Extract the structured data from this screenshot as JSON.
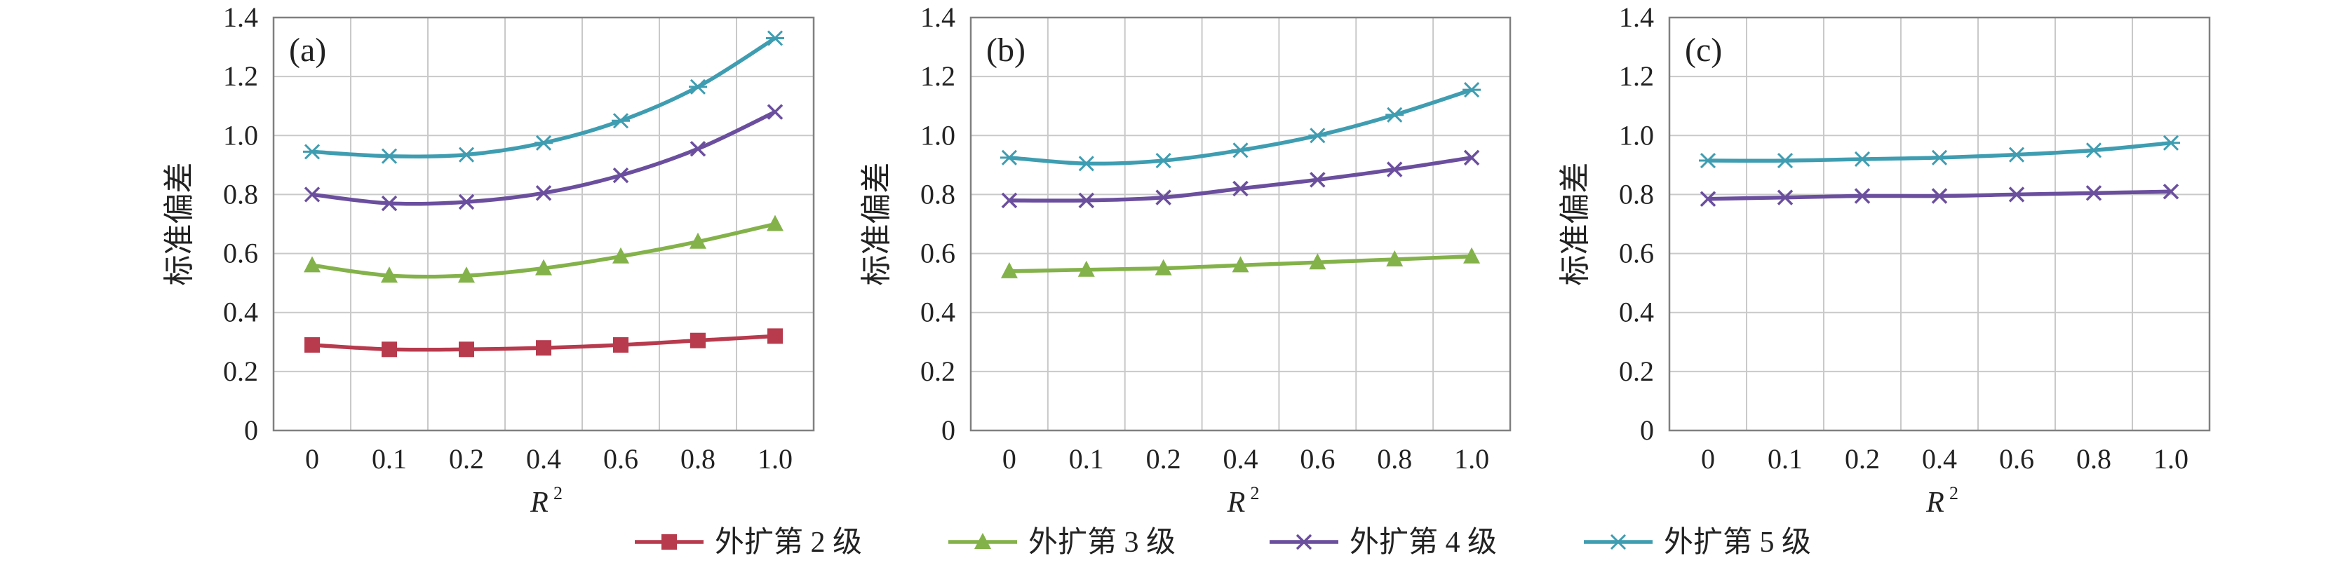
{
  "colors": {
    "grid": "#c9c9c9",
    "axis": "#808080",
    "level2": "#b73a4d",
    "level3": "#84b24a",
    "level4": "#6b4f9e",
    "level5": "#3f9db1"
  },
  "chart_data": [
    {
      "type": "line",
      "panel_label": "(a)",
      "categories": [
        "0",
        "0.1",
        "0.2",
        "0.4",
        "0.6",
        "0.8",
        "1.0"
      ],
      "ylabel": "标准偏差",
      "xlabel": "R",
      "xlabel_sup": "2",
      "ylim": [
        0,
        1.4
      ],
      "yticks": [
        "0",
        "0.2",
        "0.4",
        "0.6",
        "0.8",
        "1.0",
        "1.2",
        "1.4"
      ],
      "grid": true,
      "series": [
        {
          "name": "外扩第 2 级",
          "key": "level2",
          "marker": "square",
          "values": [
            0.29,
            0.275,
            0.275,
            0.28,
            0.29,
            0.305,
            0.32
          ]
        },
        {
          "name": "外扩第 3 级",
          "key": "level3",
          "marker": "triangle",
          "values": [
            0.56,
            0.525,
            0.525,
            0.55,
            0.59,
            0.64,
            0.7
          ]
        },
        {
          "name": "外扩第 4 级",
          "key": "level4",
          "marker": "x",
          "values": [
            0.8,
            0.77,
            0.775,
            0.805,
            0.865,
            0.955,
            1.08
          ]
        },
        {
          "name": "外扩第 5 级",
          "key": "level5",
          "marker": "asterisk",
          "values": [
            0.945,
            0.93,
            0.935,
            0.975,
            1.05,
            1.165,
            1.33
          ]
        }
      ]
    },
    {
      "type": "line",
      "panel_label": "(b)",
      "categories": [
        "0",
        "0.1",
        "0.2",
        "0.4",
        "0.6",
        "0.8",
        "1.0"
      ],
      "ylabel": "标准偏差",
      "xlabel": "R",
      "xlabel_sup": "2",
      "ylim": [
        0,
        1.4
      ],
      "yticks": [
        "0",
        "0.2",
        "0.4",
        "0.6",
        "0.8",
        "1.0",
        "1.2",
        "1.4"
      ],
      "grid": true,
      "series": [
        {
          "name": "外扩第 3 级",
          "key": "level3",
          "marker": "triangle",
          "values": [
            0.54,
            0.545,
            0.55,
            0.56,
            0.57,
            0.58,
            0.59
          ]
        },
        {
          "name": "外扩第 4 级",
          "key": "level4",
          "marker": "x",
          "values": [
            0.78,
            0.78,
            0.79,
            0.82,
            0.85,
            0.885,
            0.925
          ]
        },
        {
          "name": "外扩第 5 级",
          "key": "level5",
          "marker": "asterisk",
          "values": [
            0.925,
            0.905,
            0.915,
            0.95,
            1.0,
            1.07,
            1.155
          ]
        }
      ]
    },
    {
      "type": "line",
      "panel_label": "(c)",
      "categories": [
        "0",
        "0.1",
        "0.2",
        "0.4",
        "0.6",
        "0.8",
        "1.0"
      ],
      "ylabel": "标准偏差",
      "xlabel": "R",
      "xlabel_sup": "2",
      "ylim": [
        0,
        1.4
      ],
      "yticks": [
        "0",
        "0.2",
        "0.4",
        "0.6",
        "0.8",
        "1.0",
        "1.2",
        "1.4"
      ],
      "grid": true,
      "series": [
        {
          "name": "外扩第 4 级",
          "key": "level4",
          "marker": "x",
          "values": [
            0.785,
            0.79,
            0.795,
            0.795,
            0.8,
            0.805,
            0.81
          ]
        },
        {
          "name": "外扩第 5 级",
          "key": "level5",
          "marker": "asterisk",
          "values": [
            0.915,
            0.915,
            0.92,
            0.925,
            0.935,
            0.95,
            0.975
          ]
        }
      ]
    }
  ],
  "legend": {
    "position": "bottom-center",
    "items": [
      {
        "label": "外扩第 2 级",
        "key": "level2",
        "marker": "square"
      },
      {
        "label": "外扩第 3 级",
        "key": "level3",
        "marker": "triangle"
      },
      {
        "label": "外扩第 4 级",
        "key": "level4",
        "marker": "x"
      },
      {
        "label": "外扩第 5 级",
        "key": "level5",
        "marker": "asterisk"
      }
    ]
  }
}
